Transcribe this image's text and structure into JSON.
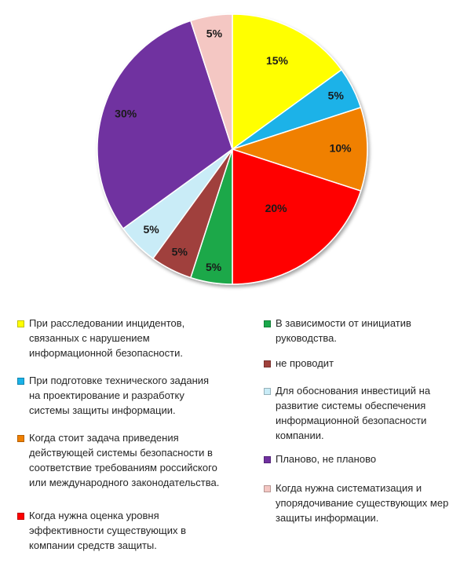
{
  "chart_data": {
    "type": "pie",
    "start_angle_deg": 0,
    "direction": "clockwise",
    "slices": [
      {
        "label": "При расследовании инцидентов,\nсвязанных с нарушением\nинформационной безопасности.",
        "value": 15,
        "value_label": "15%",
        "color": "#ffff00"
      },
      {
        "label": "При подготовке технического задания\nна проектирование и разработку\nсистемы защиты информации.",
        "value": 5,
        "value_label": "5%",
        "color": "#1ab2e8"
      },
      {
        "label": "Когда стоит задача приведения\nдействующей системы безопасности в\nсоответствие требованиям российского\nили международного законодательства.",
        "value": 10,
        "value_label": "10%",
        "color": "#f08000"
      },
      {
        "label": "Когда нужна оценка уровня\nэффективности существующих в\nкомпании средств защиты.",
        "value": 20,
        "value_label": "20%",
        "color": "#ff0000"
      },
      {
        "label": "В зависимости от инициатив\nруководства.",
        "value": 5,
        "value_label": "5%",
        "color": "#1aa84a"
      },
      {
        "label": "не проводит",
        "value": 5,
        "value_label": "5%",
        "color": "#a0413c"
      },
      {
        "label": "Для обоснования инвестиций на\nразвитие системы обеспечения\nинформационной безопасности\nкомпании.",
        "value": 5,
        "value_label": "5%",
        "color": "#c9ecf7"
      },
      {
        "label": "Планово, не планово",
        "value": 30,
        "value_label": "30%",
        "color": "#7030a0"
      },
      {
        "label": "Когда нужна систематизация и\nупорядочивание существующих мер\nзащиты информации.",
        "value": 5,
        "value_label": "5%",
        "color": "#f4c7c3"
      }
    ],
    "legend_placement": "bottom"
  }
}
